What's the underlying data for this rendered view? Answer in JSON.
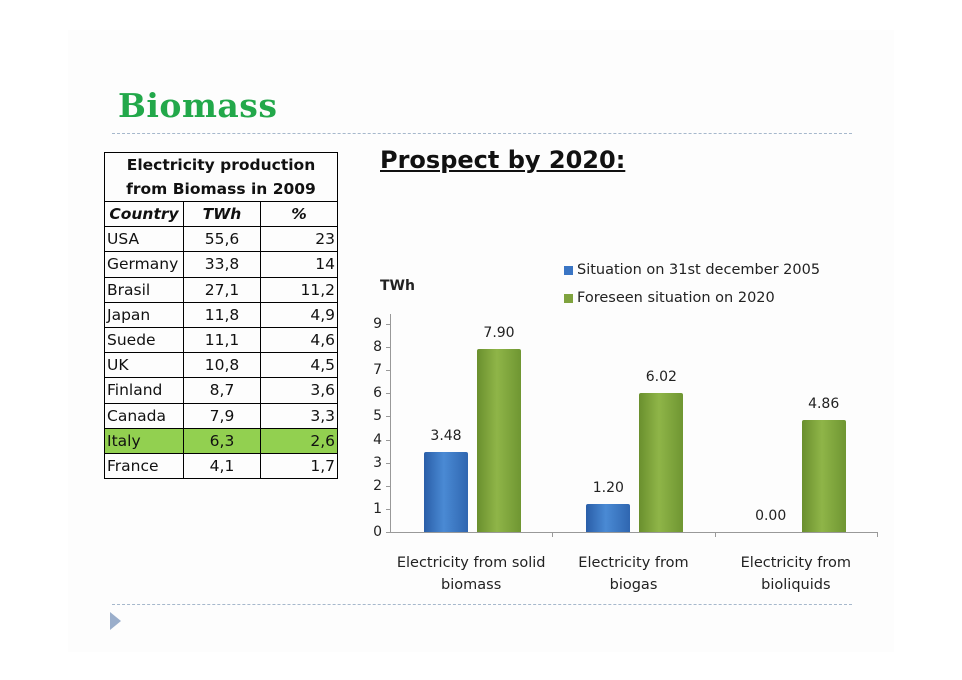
{
  "slide": {
    "title": "Biomass",
    "subtitle": "Prospect by 2020:",
    "colors": {
      "title": "#22a84a",
      "highlight_row": "#92d050",
      "rule": "#a6b8cc"
    }
  },
  "table": {
    "caption": "Electricity production from Biomass in 2009",
    "headers": [
      "Country",
      "TWh",
      "%"
    ],
    "rows": [
      {
        "country": "USA",
        "twh": "55,6",
        "pct": "23"
      },
      {
        "country": "Germany",
        "twh": "33,8",
        "pct": "14"
      },
      {
        "country": "Brasil",
        "twh": "27,1",
        "pct": "11,2"
      },
      {
        "country": "Japan",
        "twh": "11,8",
        "pct": "4,9"
      },
      {
        "country": "Suede",
        "twh": "11,1",
        "pct": "4,6"
      },
      {
        "country": "UK",
        "twh": "10,8",
        "pct": "4,5"
      },
      {
        "country": "Finland",
        "twh": "8,7",
        "pct": "3,6"
      },
      {
        "country": "Canada",
        "twh": "7,9",
        "pct": "3,3"
      },
      {
        "country": "Italy",
        "twh": "6,3",
        "pct": "2,6",
        "highlighted": true
      },
      {
        "country": "France",
        "twh": "4,1",
        "pct": "1,7"
      }
    ]
  },
  "chart_data": [
    {
      "type": "table",
      "title": "Electricity production from Biomass in 2009",
      "columns": [
        "Country",
        "TWh",
        "%"
      ],
      "rows": [
        [
          "USA",
          55.6,
          23
        ],
        [
          "Germany",
          33.8,
          14
        ],
        [
          "Brasil",
          27.1,
          11.2
        ],
        [
          "Japan",
          11.8,
          4.9
        ],
        [
          "Suede",
          11.1,
          4.6
        ],
        [
          "UK",
          10.8,
          4.5
        ],
        [
          "Finland",
          8.7,
          3.6
        ],
        [
          "Canada",
          7.9,
          3.3
        ],
        [
          "Italy",
          6.3,
          2.6
        ],
        [
          "France",
          4.1,
          1.7
        ]
      ]
    },
    {
      "type": "bar",
      "title": "Prospect by 2020:",
      "ylabel": "TWh",
      "xlabel": "",
      "ylim": [
        0,
        9
      ],
      "yticks": [
        "0",
        "1",
        "2",
        "3",
        "4",
        "5",
        "6",
        "7",
        "8",
        "9"
      ],
      "grid": false,
      "legend_position": "top-right",
      "categories": [
        "Electricity from solid biomass",
        "Electricity from biogas",
        "Electricity from bioliquids"
      ],
      "category_lines": [
        [
          "Electricity from solid",
          "biomass"
        ],
        [
          "Electricity from",
          "biogas"
        ],
        [
          "Electricity from",
          "bioliquids"
        ]
      ],
      "series": [
        {
          "name": "Situation on 31st december 2005",
          "color": "#3a75c4",
          "values": [
            3.48,
            1.2,
            0.0
          ],
          "labels": [
            "3.48",
            "1.20",
            "0.00"
          ]
        },
        {
          "name": "Foreseen situation on 2020",
          "color": "#7fa33e",
          "values": [
            7.9,
            6.02,
            4.86
          ],
          "labels": [
            "7.90",
            "6.02",
            "4.86"
          ]
        }
      ]
    }
  ]
}
